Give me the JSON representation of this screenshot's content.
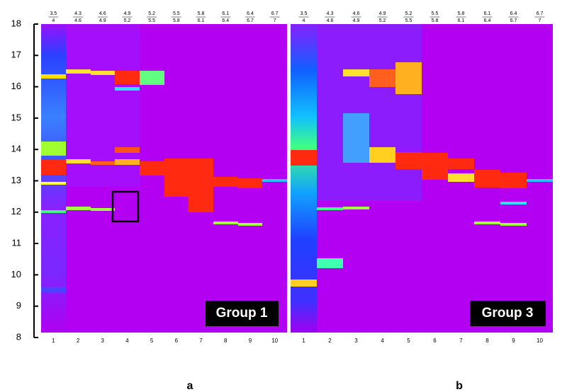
{
  "figure": {
    "yticks": [
      8,
      9,
      10,
      11,
      12,
      13,
      14,
      15,
      16,
      17,
      18
    ],
    "ylim": [
      8,
      18
    ],
    "panels": [
      {
        "label": "a",
        "group": "Group 1",
        "lanes": [
          {
            "top": "3.5",
            "bottom": "4",
            "number": "1"
          },
          {
            "top": "4.3",
            "bottom": "4.6",
            "number": "2"
          },
          {
            "top": "4.6",
            "bottom": "4.9",
            "number": "3"
          },
          {
            "top": "4.9",
            "bottom": "5.2",
            "number": "4"
          },
          {
            "top": "5.2",
            "bottom": "5.5",
            "number": "5"
          },
          {
            "top": "5.5",
            "bottom": "5.8",
            "number": "6"
          },
          {
            "top": "5.8",
            "bottom": "6.1",
            "number": "7"
          },
          {
            "top": "6.1",
            "bottom": "6.4",
            "number": "8"
          },
          {
            "top": "6.4",
            "bottom": "6.7",
            "number": "9"
          },
          {
            "top": "6.7",
            "bottom": "7",
            "number": "10"
          }
        ]
      },
      {
        "label": "b",
        "group": "Group 3",
        "lanes": [
          {
            "top": "3.5",
            "bottom": "4",
            "number": "1"
          },
          {
            "top": "4.3",
            "bottom": "4.6",
            "number": "2"
          },
          {
            "top": "4.6",
            "bottom": "4.9",
            "number": "3"
          },
          {
            "top": "4.9",
            "bottom": "5.2",
            "number": "4"
          },
          {
            "top": "5.2",
            "bottom": "5.5",
            "number": "5"
          },
          {
            "top": "5.5",
            "bottom": "5.8",
            "number": "6"
          },
          {
            "top": "5.8",
            "bottom": "6.1",
            "number": "7"
          },
          {
            "top": "6.1",
            "bottom": "6.4",
            "number": "8"
          },
          {
            "top": "6.4",
            "bottom": "6.7",
            "number": "9"
          },
          {
            "top": "6.7",
            "bottom": "7",
            "number": "10"
          }
        ]
      }
    ]
  }
}
